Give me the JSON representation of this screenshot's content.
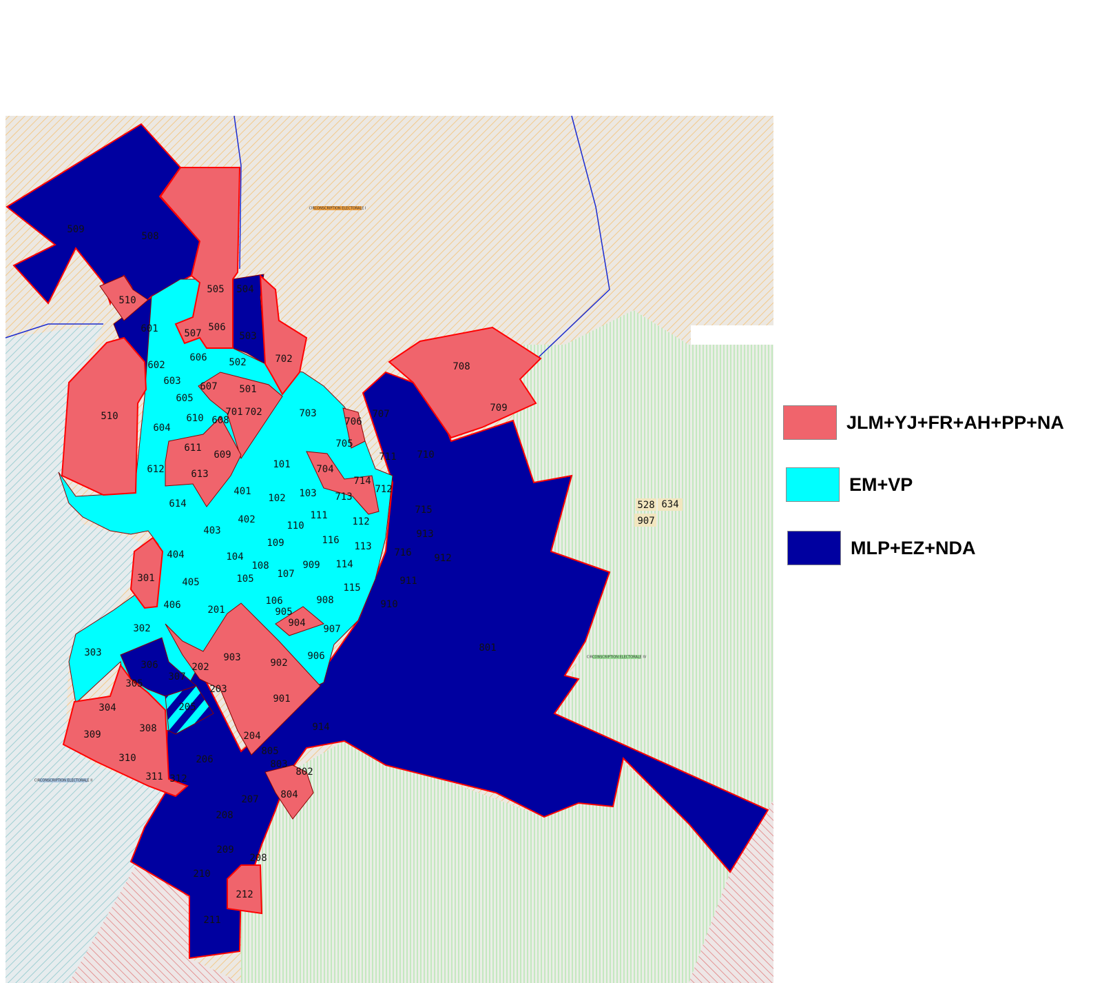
{
  "legend": [
    {
      "label": "JLM+YJ+FR+AH+PP+NA",
      "color": "#f0646c"
    },
    {
      "label": "EM+VP",
      "color": "#00ffff"
    },
    {
      "label": "MLP+EZ+NDA",
      "color": "#0000a0"
    }
  ],
  "colors": {
    "border": "#ff0000",
    "inner_border": "#8b0000",
    "hatch_north": "#f3c98a",
    "hatch_west": "#9fcfd3",
    "hatch_east": "#9de39a",
    "hatch_south": "#e07a7a"
  },
  "background_labels": {
    "north": "CIRCONSCRIPTION ELECTORALE I",
    "west": "CIRCONSCRIPTION ELECTORALE II",
    "east": "CIRCONSCRIPTION ELECTORALE IV"
  },
  "external_tags": [
    "528",
    "634",
    "907"
  ],
  "precincts": [
    {
      "id": "509",
      "group": 2
    },
    {
      "id": "508",
      "group": 2
    },
    {
      "id": "505",
      "group": 0
    },
    {
      "id": "510",
      "group": 0
    },
    {
      "id": "504",
      "group": 2
    },
    {
      "id": "506",
      "group": 0
    },
    {
      "id": "507",
      "group": 0
    },
    {
      "id": "503",
      "group": 2
    },
    {
      "id": "601",
      "group": 2
    },
    {
      "id": "602",
      "group": 2
    },
    {
      "id": "702",
      "group": 0
    },
    {
      "id": "606",
      "group": 1
    },
    {
      "id": "502",
      "group": 1
    },
    {
      "id": "603",
      "group": 2
    },
    {
      "id": "607",
      "group": 0
    },
    {
      "id": "501",
      "group": 0
    },
    {
      "id": "605",
      "group": 2
    },
    {
      "id": "701",
      "group": 1
    },
    {
      "id": "702",
      "group": 0
    },
    {
      "id": "608",
      "group": 0
    },
    {
      "id": "510",
      "group": 0
    },
    {
      "id": "610",
      "group": 1
    },
    {
      "id": "604",
      "group": 1
    },
    {
      "id": "611",
      "group": 0
    },
    {
      "id": "609",
      "group": 0
    },
    {
      "id": "612",
      "group": 1
    },
    {
      "id": "613",
      "group": 0
    },
    {
      "id": "614",
      "group": 1
    },
    {
      "id": "703",
      "group": 1
    },
    {
      "id": "708",
      "group": 0
    },
    {
      "id": "709",
      "group": 0
    },
    {
      "id": "707",
      "group": 2
    },
    {
      "id": "706",
      "group": 0
    },
    {
      "id": "705",
      "group": 1
    },
    {
      "id": "711",
      "group": 2
    },
    {
      "id": "710",
      "group": 2
    },
    {
      "id": "101",
      "group": 1
    },
    {
      "id": "704",
      "group": 0
    },
    {
      "id": "714",
      "group": 0
    },
    {
      "id": "712",
      "group": 1
    },
    {
      "id": "401",
      "group": 1
    },
    {
      "id": "102",
      "group": 1
    },
    {
      "id": "103",
      "group": 1
    },
    {
      "id": "713",
      "group": 1
    },
    {
      "id": "111",
      "group": 1
    },
    {
      "id": "112",
      "group": 1
    },
    {
      "id": "715",
      "group": 2
    },
    {
      "id": "402",
      "group": 1
    },
    {
      "id": "403",
      "group": 1
    },
    {
      "id": "110",
      "group": 1
    },
    {
      "id": "116",
      "group": 1
    },
    {
      "id": "113",
      "group": 1
    },
    {
      "id": "913",
      "group": 2
    },
    {
      "id": "109",
      "group": 1
    },
    {
      "id": "716",
      "group": 2
    },
    {
      "id": "912",
      "group": 2
    },
    {
      "id": "404",
      "group": 1
    },
    {
      "id": "104",
      "group": 1
    },
    {
      "id": "108",
      "group": 1
    },
    {
      "id": "909",
      "group": 1
    },
    {
      "id": "107",
      "group": 1
    },
    {
      "id": "114",
      "group": 1
    },
    {
      "id": "105",
      "group": 1
    },
    {
      "id": "301",
      "group": 0
    },
    {
      "id": "405",
      "group": 1
    },
    {
      "id": "911",
      "group": 2
    },
    {
      "id": "115",
      "group": 1
    },
    {
      "id": "406",
      "group": 1
    },
    {
      "id": "106",
      "group": 1
    },
    {
      "id": "908",
      "group": 1
    },
    {
      "id": "201",
      "group": 1
    },
    {
      "id": "910",
      "group": 2
    },
    {
      "id": "905",
      "group": 1
    },
    {
      "id": "904",
      "group": 0
    },
    {
      "id": "302",
      "group": 1
    },
    {
      "id": "907",
      "group": 1
    },
    {
      "id": "801",
      "group": 2
    },
    {
      "id": "303",
      "group": 1
    },
    {
      "id": "903",
      "group": 0
    },
    {
      "id": "906",
      "group": 1
    },
    {
      "id": "306",
      "group": 2
    },
    {
      "id": "902",
      "group": 0
    },
    {
      "id": "202",
      "group": 0
    },
    {
      "id": "307",
      "group": 2
    },
    {
      "id": "305",
      "group": 0
    },
    {
      "id": "203",
      "group": 0
    },
    {
      "id": "304",
      "group": 0
    },
    {
      "id": "901",
      "group": 0
    },
    {
      "id": "205",
      "group": 3
    },
    {
      "id": "308",
      "group": 0
    },
    {
      "id": "914",
      "group": 2
    },
    {
      "id": "309",
      "group": 0
    },
    {
      "id": "204",
      "group": 0
    },
    {
      "id": "805",
      "group": 2
    },
    {
      "id": "206",
      "group": 2
    },
    {
      "id": "310",
      "group": 0
    },
    {
      "id": "803",
      "group": 0
    },
    {
      "id": "802",
      "group": 2
    },
    {
      "id": "311",
      "group": 0
    },
    {
      "id": "312",
      "group": 0
    },
    {
      "id": "804",
      "group": 0
    },
    {
      "id": "207",
      "group": 2
    },
    {
      "id": "208",
      "group": 2
    },
    {
      "id": "209",
      "group": 2
    },
    {
      "id": "208",
      "group": 2
    },
    {
      "id": "210",
      "group": 2
    },
    {
      "id": "212",
      "group": 0
    },
    {
      "id": "211",
      "group": 2
    }
  ]
}
